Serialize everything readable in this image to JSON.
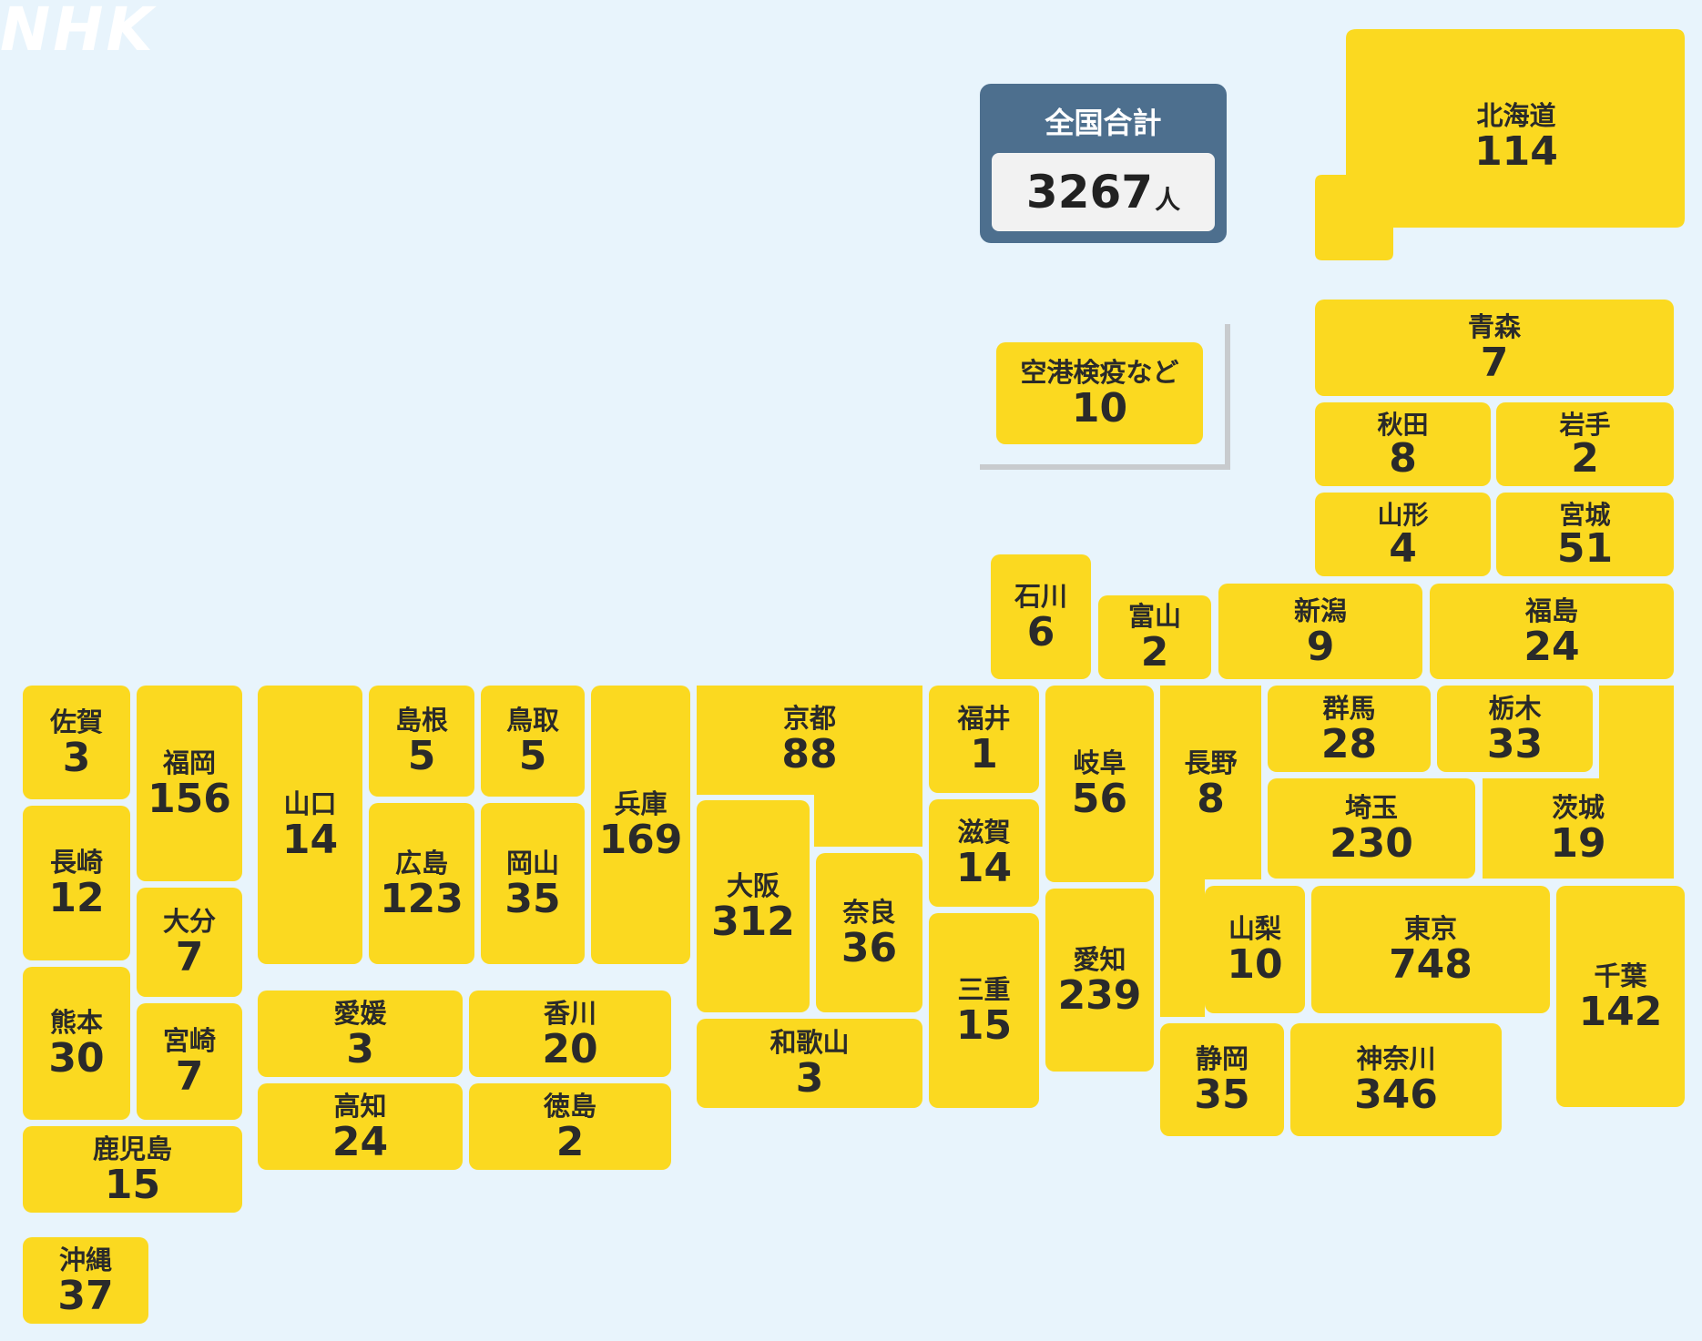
{
  "logo": "NHK",
  "total": {
    "title": "全国合計",
    "value": "3267",
    "unit": "人"
  },
  "airport": {
    "name": "空港検疫など",
    "count": "10"
  },
  "colors": {
    "background": "#e8f4fc",
    "prefecture": "#fbd920",
    "total_box": "#4d6f8e"
  },
  "prefectures": [
    {
      "id": "hokkaido",
      "name": "北海道",
      "count": "114"
    },
    {
      "id": "aomori",
      "name": "青森",
      "count": "7"
    },
    {
      "id": "akita",
      "name": "秋田",
      "count": "8"
    },
    {
      "id": "iwate",
      "name": "岩手",
      "count": "2"
    },
    {
      "id": "yamagata",
      "name": "山形",
      "count": "4"
    },
    {
      "id": "miyagi",
      "name": "宮城",
      "count": "51"
    },
    {
      "id": "ishikawa",
      "name": "石川",
      "count": "6"
    },
    {
      "id": "toyama",
      "name": "富山",
      "count": "2"
    },
    {
      "id": "niigata",
      "name": "新潟",
      "count": "9"
    },
    {
      "id": "fukushima",
      "name": "福島",
      "count": "24"
    },
    {
      "id": "saga",
      "name": "佐賀",
      "count": "3"
    },
    {
      "id": "fukuoka",
      "name": "福岡",
      "count": "156"
    },
    {
      "id": "yamaguchi",
      "name": "山口",
      "count": "14"
    },
    {
      "id": "shimane",
      "name": "島根",
      "count": "5"
    },
    {
      "id": "tottori",
      "name": "鳥取",
      "count": "5"
    },
    {
      "id": "hyogo",
      "name": "兵庫",
      "count": "169"
    },
    {
      "id": "kyoto",
      "name": "京都",
      "count": "88"
    },
    {
      "id": "fukui",
      "name": "福井",
      "count": "1"
    },
    {
      "id": "gifu",
      "name": "岐阜",
      "count": "56"
    },
    {
      "id": "nagano",
      "name": "長野",
      "count": "8"
    },
    {
      "id": "gunma",
      "name": "群馬",
      "count": "28"
    },
    {
      "id": "tochigi",
      "name": "栃木",
      "count": "33"
    },
    {
      "id": "nagasaki",
      "name": "長崎",
      "count": "12"
    },
    {
      "id": "hiroshima",
      "name": "広島",
      "count": "123"
    },
    {
      "id": "okayama",
      "name": "岡山",
      "count": "35"
    },
    {
      "id": "osaka",
      "name": "大阪",
      "count": "312"
    },
    {
      "id": "nara",
      "name": "奈良",
      "count": "36"
    },
    {
      "id": "shiga",
      "name": "滋賀",
      "count": "14"
    },
    {
      "id": "saitama",
      "name": "埼玉",
      "count": "230"
    },
    {
      "id": "ibaraki",
      "name": "茨城",
      "count": "19"
    },
    {
      "id": "oita",
      "name": "大分",
      "count": "7"
    },
    {
      "id": "kumamoto",
      "name": "熊本",
      "count": "30"
    },
    {
      "id": "miyazaki",
      "name": "宮崎",
      "count": "7"
    },
    {
      "id": "ehime",
      "name": "愛媛",
      "count": "3"
    },
    {
      "id": "kagawa",
      "name": "香川",
      "count": "20"
    },
    {
      "id": "kochi",
      "name": "高知",
      "count": "24"
    },
    {
      "id": "tokushima",
      "name": "徳島",
      "count": "2"
    },
    {
      "id": "wakayama",
      "name": "和歌山",
      "count": "3"
    },
    {
      "id": "mie",
      "name": "三重",
      "count": "15"
    },
    {
      "id": "aichi",
      "name": "愛知",
      "count": "239"
    },
    {
      "id": "yamanashi",
      "name": "山梨",
      "count": "10"
    },
    {
      "id": "tokyo",
      "name": "東京",
      "count": "748"
    },
    {
      "id": "chiba",
      "name": "千葉",
      "count": "142"
    },
    {
      "id": "shizuoka",
      "name": "静岡",
      "count": "35"
    },
    {
      "id": "kanagawa",
      "name": "神奈川",
      "count": "346"
    },
    {
      "id": "kagoshima",
      "name": "鹿児島",
      "count": "15"
    },
    {
      "id": "okinawa",
      "name": "沖縄",
      "count": "37"
    }
  ]
}
